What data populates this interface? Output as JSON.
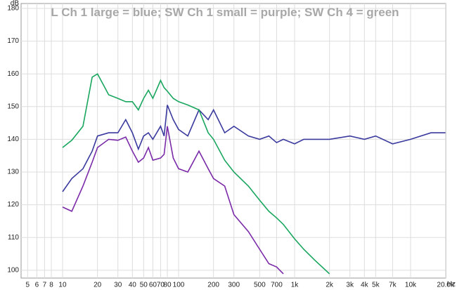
{
  "chart_data": {
    "type": "line",
    "title": "L Ch 1 large = blue; SW Ch 1 small = purple; SW Ch 4 = green",
    "y_label": "dB",
    "x_label": "Hz",
    "log_x": true,
    "grid": true,
    "xlim": [
      4.39,
      20100
    ],
    "ylim": [
      97.6,
      181.5
    ],
    "yticks": [
      100,
      110,
      120,
      130,
      140,
      150,
      160,
      170,
      180
    ],
    "xticks": [
      5,
      6,
      7,
      8,
      10,
      20,
      30,
      40,
      50,
      60,
      70,
      80,
      100,
      200,
      300,
      500,
      700,
      {
        "value": 1000,
        "label": "1k"
      },
      {
        "value": 2000,
        "label": "2k"
      },
      {
        "value": 3000,
        "label": "3k"
      },
      {
        "value": 4000,
        "label": "4k"
      },
      {
        "value": 5000,
        "label": "5k"
      },
      {
        "value": 7000,
        "label": "7k"
      },
      {
        "value": 10000,
        "label": "10k"
      },
      {
        "value": 20000,
        "label": "20.0k"
      }
    ],
    "x": [
      10,
      12,
      15,
      18,
      20,
      25,
      30,
      35,
      40,
      45,
      50,
      55,
      60,
      70,
      75,
      80,
      90,
      100,
      120,
      150,
      180,
      200,
      250,
      300,
      400,
      500,
      600,
      700,
      800,
      1000,
      1200,
      1500,
      2000,
      3000,
      4000,
      5000,
      7000,
      10000,
      15000,
      20000
    ],
    "series": [
      {
        "name": "blue",
        "color": "#3a3a9e",
        "values": [
          124,
          128,
          131,
          136.4,
          141,
          142,
          142,
          146,
          142,
          137,
          141,
          142,
          140,
          144,
          141,
          150.5,
          146,
          143,
          141,
          149,
          146,
          149,
          142,
          144,
          141,
          140,
          141,
          139,
          140,
          138.6,
          140,
          140,
          140,
          141,
          140,
          141,
          138.6,
          140,
          142,
          142
        ]
      },
      {
        "name": "green",
        "color": "#19a65e",
        "values": [
          137.5,
          139.7,
          144,
          159,
          160,
          153.6,
          152.5,
          151.5,
          151.5,
          149,
          152.5,
          155,
          152.5,
          158,
          155.8,
          154.7,
          152.5,
          151.5,
          150.5,
          149,
          142,
          140,
          133.6,
          130,
          125.7,
          121.4,
          118,
          116,
          114,
          109.6,
          106.4,
          103,
          98.9,
          null,
          null,
          null,
          null,
          null,
          null,
          null
        ]
      },
      {
        "name": "purple",
        "color": "#7a2aa8",
        "values": [
          119.3,
          118,
          125.7,
          133,
          137.5,
          140,
          139.7,
          140.7,
          136.4,
          133,
          134.3,
          137.5,
          133.6,
          134.3,
          135.4,
          144,
          134.3,
          131,
          130,
          136.4,
          131,
          128,
          125.7,
          117,
          111.8,
          106.4,
          102,
          101,
          98.9,
          null,
          null,
          null,
          null,
          null,
          null,
          null,
          null,
          null,
          null,
          null
        ]
      }
    ]
  }
}
